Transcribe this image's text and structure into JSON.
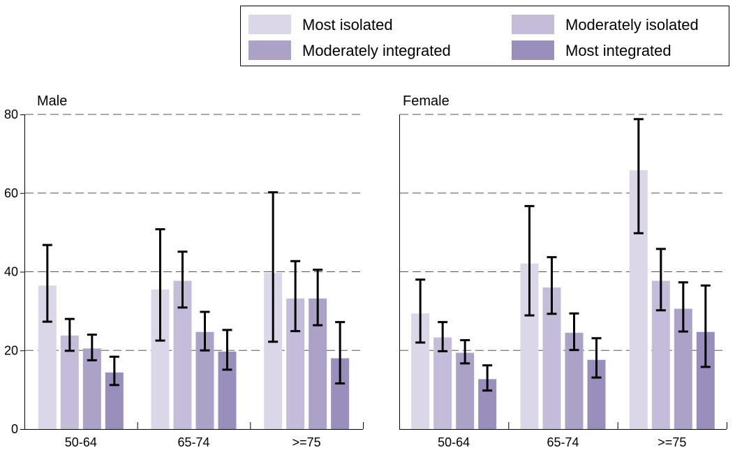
{
  "chart_data": {
    "type": "bar",
    "ylim": [
      0,
      80
    ],
    "yticks": [
      0,
      20,
      40,
      60,
      80
    ],
    "grid": true,
    "legend_position": "top-right",
    "categories": [
      "50-64",
      "65-74",
      ">=75"
    ],
    "series": [
      {
        "name": "Most isolated",
        "color": "#dcd7e8"
      },
      {
        "name": "Moderately isolated",
        "color": "#c4bcd8"
      },
      {
        "name": "Moderately integrated",
        "color": "#aca1c7"
      },
      {
        "name": "Most integrated",
        "color": "#9a8ebd"
      }
    ],
    "panels": [
      {
        "title": "Male",
        "values": [
          [
            36.5,
            23.8,
            20.5,
            14.4
          ],
          [
            35.5,
            37.7,
            24.7,
            19.7
          ],
          [
            39.7,
            33.2,
            33.2,
            18.0
          ]
        ],
        "err_low": [
          [
            27.3,
            19.9,
            17.5,
            11.2
          ],
          [
            22.5,
            30.9,
            20.0,
            15.1
          ],
          [
            22.2,
            24.9,
            26.4,
            11.6
          ]
        ],
        "err_high": [
          [
            46.8,
            28.0,
            24.0,
            18.4
          ],
          [
            50.8,
            45.1,
            29.8,
            25.2
          ],
          [
            60.2,
            42.7,
            40.5,
            27.2
          ]
        ]
      },
      {
        "title": "Female",
        "values": [
          [
            29.4,
            23.3,
            19.4,
            12.7
          ],
          [
            42.1,
            36.0,
            24.5,
            17.6
          ],
          [
            65.8,
            37.7,
            30.6,
            24.7
          ]
        ],
        "err_low": [
          [
            22.0,
            19.8,
            16.7,
            9.8
          ],
          [
            28.9,
            29.3,
            20.1,
            13.1
          ],
          [
            49.8,
            30.2,
            24.8,
            15.8
          ]
        ],
        "err_high": [
          [
            38.0,
            27.2,
            22.6,
            16.2
          ],
          [
            56.7,
            43.7,
            29.4,
            23.1
          ],
          [
            78.8,
            45.8,
            37.3,
            36.5
          ]
        ]
      }
    ]
  }
}
